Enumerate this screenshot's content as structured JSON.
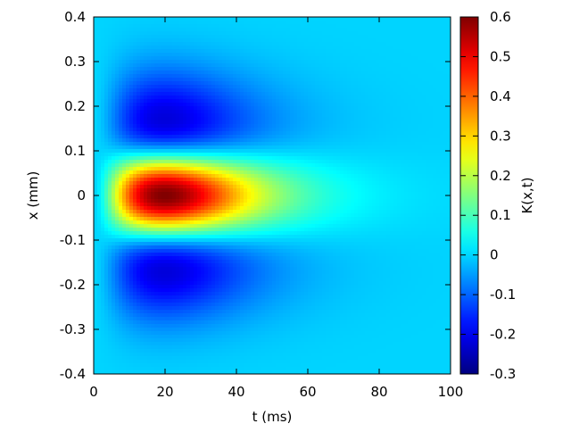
{
  "chart_data": {
    "type": "heatmap",
    "xlabel": "t (ms)",
    "ylabel": "x (mm)",
    "colorbar_label": "K(x,t)",
    "xlim": [
      0,
      100
    ],
    "ylim": [
      -0.4,
      0.4
    ],
    "x_ticks": [
      0,
      20,
      40,
      60,
      80,
      100
    ],
    "y_ticks": [
      -0.4,
      -0.3,
      -0.2,
      -0.1,
      0,
      0.1,
      0.2,
      0.3,
      0.4
    ],
    "clim": [
      -0.3,
      0.6
    ],
    "colorbar_ticks": [
      -0.3,
      -0.2,
      -0.1,
      0,
      0.1,
      0.2,
      0.3,
      0.4,
      0.5,
      0.6
    ],
    "colormap": "jet",
    "background_value": 0,
    "features": [
      {
        "name": "center-peak",
        "t_center": 20,
        "x_center": 0,
        "value": 0.6
      },
      {
        "name": "upper-trough",
        "t_center": 20,
        "x_center": 0.15,
        "value": -0.24
      },
      {
        "name": "lower-trough",
        "t_center": 20,
        "x_center": -0.15,
        "value": -0.24
      }
    ]
  }
}
